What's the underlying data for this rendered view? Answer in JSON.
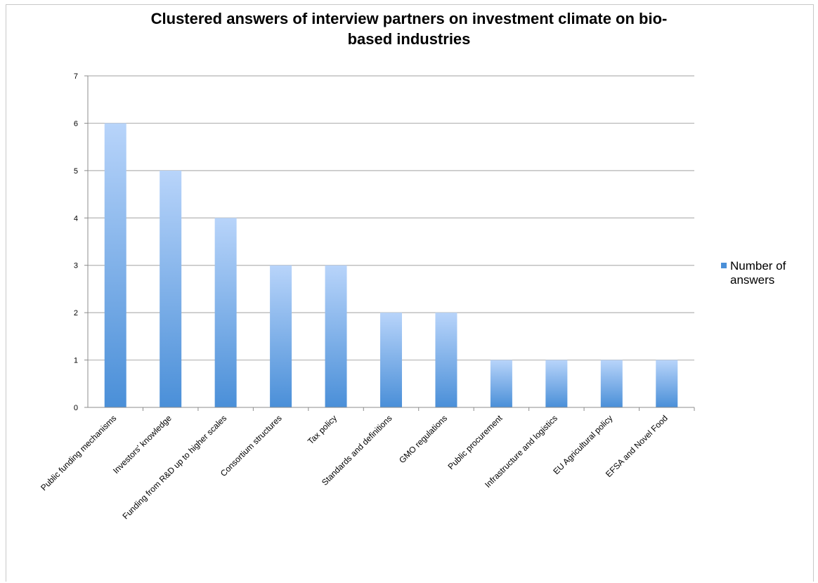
{
  "chart_data": {
    "type": "bar",
    "title": [
      "Clustered answers of interview partners on investment climate on bio-",
      "based industries"
    ],
    "categories": [
      "Public funding mechanisms",
      "Investors' knowledge",
      "Funding from R&D up to higher scales",
      "Consortium structures",
      "Tax policy",
      "Standards and definitions",
      "GMO regulations",
      "Public procurement",
      "Infrastructure and logistics",
      "EU Agricultural policy",
      "EFSA and Novel Food"
    ],
    "series": [
      {
        "name": [
          "Number of",
          "answers"
        ],
        "values": [
          6,
          5,
          4,
          3,
          3,
          2,
          2,
          1,
          1,
          1,
          1
        ]
      }
    ],
    "ylim": [
      0,
      7
    ],
    "yticks": [
      "0",
      "1",
      "2",
      "3",
      "4",
      "5",
      "6",
      "7"
    ],
    "grid": true,
    "legend_position": "right",
    "colors": {
      "bar_top": "#b8d4fa",
      "bar_bottom": "#4a8fd8",
      "grid": "#b4b4b4",
      "axis": "#8c8c8c"
    }
  }
}
